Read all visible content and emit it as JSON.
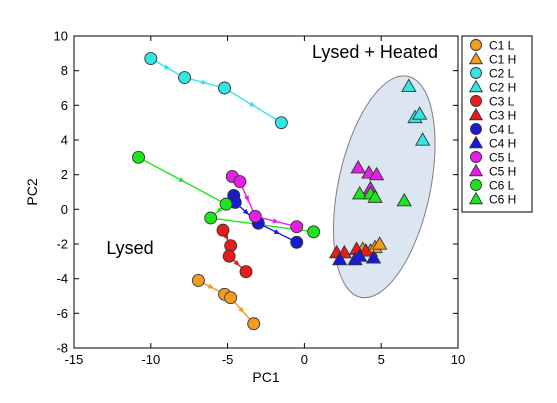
{
  "chart_data": {
    "type": "scatter",
    "xlabel": "PC1",
    "ylabel": "PC2",
    "xlim": [
      -15,
      10
    ],
    "ylim": [
      -8,
      10
    ],
    "xticks": [
      -15,
      -10,
      -5,
      0,
      5,
      10
    ],
    "yticks": [
      -8,
      -6,
      -4,
      -2,
      0,
      2,
      4,
      6,
      8,
      10
    ],
    "grid": false,
    "legend_position": "right",
    "annotations": [
      {
        "text": "Lysed + Heated",
        "x": 6.7,
        "y": 8.9
      },
      {
        "text": "Lysed",
        "x": -9.8,
        "y": -2.5
      }
    ],
    "ellipse": {
      "center_x": 5.2,
      "center_y": 1.3,
      "fill": "#dce6f2",
      "stroke": "#7f7f7f"
    },
    "series": [
      {
        "name": "C1 L",
        "marker": "circle",
        "color": "#f39c1f",
        "x": [
          -6.9,
          -5.2,
          -4.8,
          -3.3
        ],
        "y": [
          -4.1,
          -4.9,
          -5.1,
          -6.6
        ]
      },
      {
        "name": "C1 H",
        "marker": "triangle",
        "color": "#f39c1f",
        "x": [
          3.8,
          4.3,
          4.6,
          4.9
        ],
        "y": [
          -2.3,
          -2.4,
          -2.2,
          -2.0
        ]
      },
      {
        "name": "C2 L",
        "marker": "circle",
        "color": "#33e6e6",
        "x": [
          -10.0,
          -7.8,
          -5.2,
          -1.5
        ],
        "y": [
          8.7,
          7.6,
          7.0,
          5.0
        ]
      },
      {
        "name": "C2 H",
        "marker": "triangle",
        "color": "#33e6e6",
        "x": [
          6.8,
          7.2,
          7.5,
          7.7
        ],
        "y": [
          7.1,
          5.3,
          5.5,
          4.0
        ]
      },
      {
        "name": "C3 L",
        "marker": "circle",
        "color": "#e81c1c",
        "x": [
          -5.3,
          -4.8,
          -4.9,
          -3.8
        ],
        "y": [
          -1.2,
          -2.1,
          -2.7,
          -3.6
        ]
      },
      {
        "name": "C3 H",
        "marker": "triangle",
        "color": "#e81c1c",
        "x": [
          2.1,
          2.6,
          3.4,
          4.0
        ],
        "y": [
          -2.5,
          -2.5,
          -2.3,
          -2.4
        ]
      },
      {
        "name": "C4 L",
        "marker": "circle",
        "color": "#1a1ad6",
        "x": [
          -4.6,
          -4.5,
          -3.0,
          -0.5
        ],
        "y": [
          0.8,
          0.4,
          -0.8,
          -1.9
        ]
      },
      {
        "name": "C4 H",
        "marker": "triangle",
        "color": "#1a1ad6",
        "x": [
          2.3,
          3.3,
          3.6,
          4.5
        ],
        "y": [
          -2.9,
          -2.9,
          -2.7,
          -2.8
        ]
      },
      {
        "name": "C5 L",
        "marker": "circle",
        "color": "#e61ee6",
        "x": [
          -4.7,
          -4.2,
          -3.2,
          -0.5
        ],
        "y": [
          1.9,
          1.6,
          -0.4,
          -1.0
        ]
      },
      {
        "name": "C5 H",
        "marker": "triangle",
        "color": "#e61ee6",
        "x": [
          3.5,
          4.2,
          4.7,
          4.3
        ],
        "y": [
          2.4,
          2.1,
          2.0,
          1.2
        ]
      },
      {
        "name": "C6 L",
        "marker": "circle",
        "color": "#1ee61e",
        "x": [
          -10.8,
          -5.1,
          -6.1,
          0.6
        ],
        "y": [
          3.0,
          0.3,
          -0.5,
          -1.3
        ]
      },
      {
        "name": "C6 H",
        "marker": "triangle",
        "color": "#1ee61e",
        "x": [
          3.6,
          4.3,
          4.6,
          6.5
        ],
        "y": [
          0.9,
          0.9,
          0.7,
          0.5
        ]
      }
    ],
    "trajectories": [
      {
        "series": "C1 L",
        "color": "#f39c1f",
        "points": [
          [
            -6.9,
            -4.1
          ],
          [
            -5.2,
            -4.9
          ],
          [
            -4.8,
            -5.1
          ],
          [
            -3.3,
            -6.6
          ]
        ]
      },
      {
        "series": "C2 L",
        "color": "#33e6e6",
        "points": [
          [
            -10.0,
            8.7
          ],
          [
            -7.8,
            7.6
          ],
          [
            -5.2,
            7.0
          ],
          [
            -1.5,
            5.0
          ]
        ]
      },
      {
        "series": "C3 L",
        "color": "#e81c1c",
        "points": [
          [
            -5.3,
            -1.2
          ],
          [
            -4.8,
            -2.1
          ],
          [
            -4.9,
            -2.7
          ],
          [
            -3.8,
            -3.6
          ]
        ]
      },
      {
        "series": "C4 L",
        "color": "#1a1ad6",
        "points": [
          [
            -4.6,
            0.8
          ],
          [
            -4.5,
            0.4
          ],
          [
            -3.0,
            -0.8
          ],
          [
            -0.5,
            -1.9
          ]
        ]
      },
      {
        "series": "C5 L",
        "color": "#e61ee6",
        "points": [
          [
            -4.7,
            1.9
          ],
          [
            -4.2,
            1.6
          ],
          [
            -3.2,
            -0.4
          ],
          [
            -0.5,
            -1.0
          ]
        ]
      },
      {
        "series": "C6 L",
        "color": "#1ee61e",
        "points": [
          [
            -10.8,
            3.0
          ],
          [
            -5.1,
            0.3
          ],
          [
            -6.1,
            -0.5
          ],
          [
            0.6,
            -1.3
          ]
        ]
      }
    ]
  }
}
